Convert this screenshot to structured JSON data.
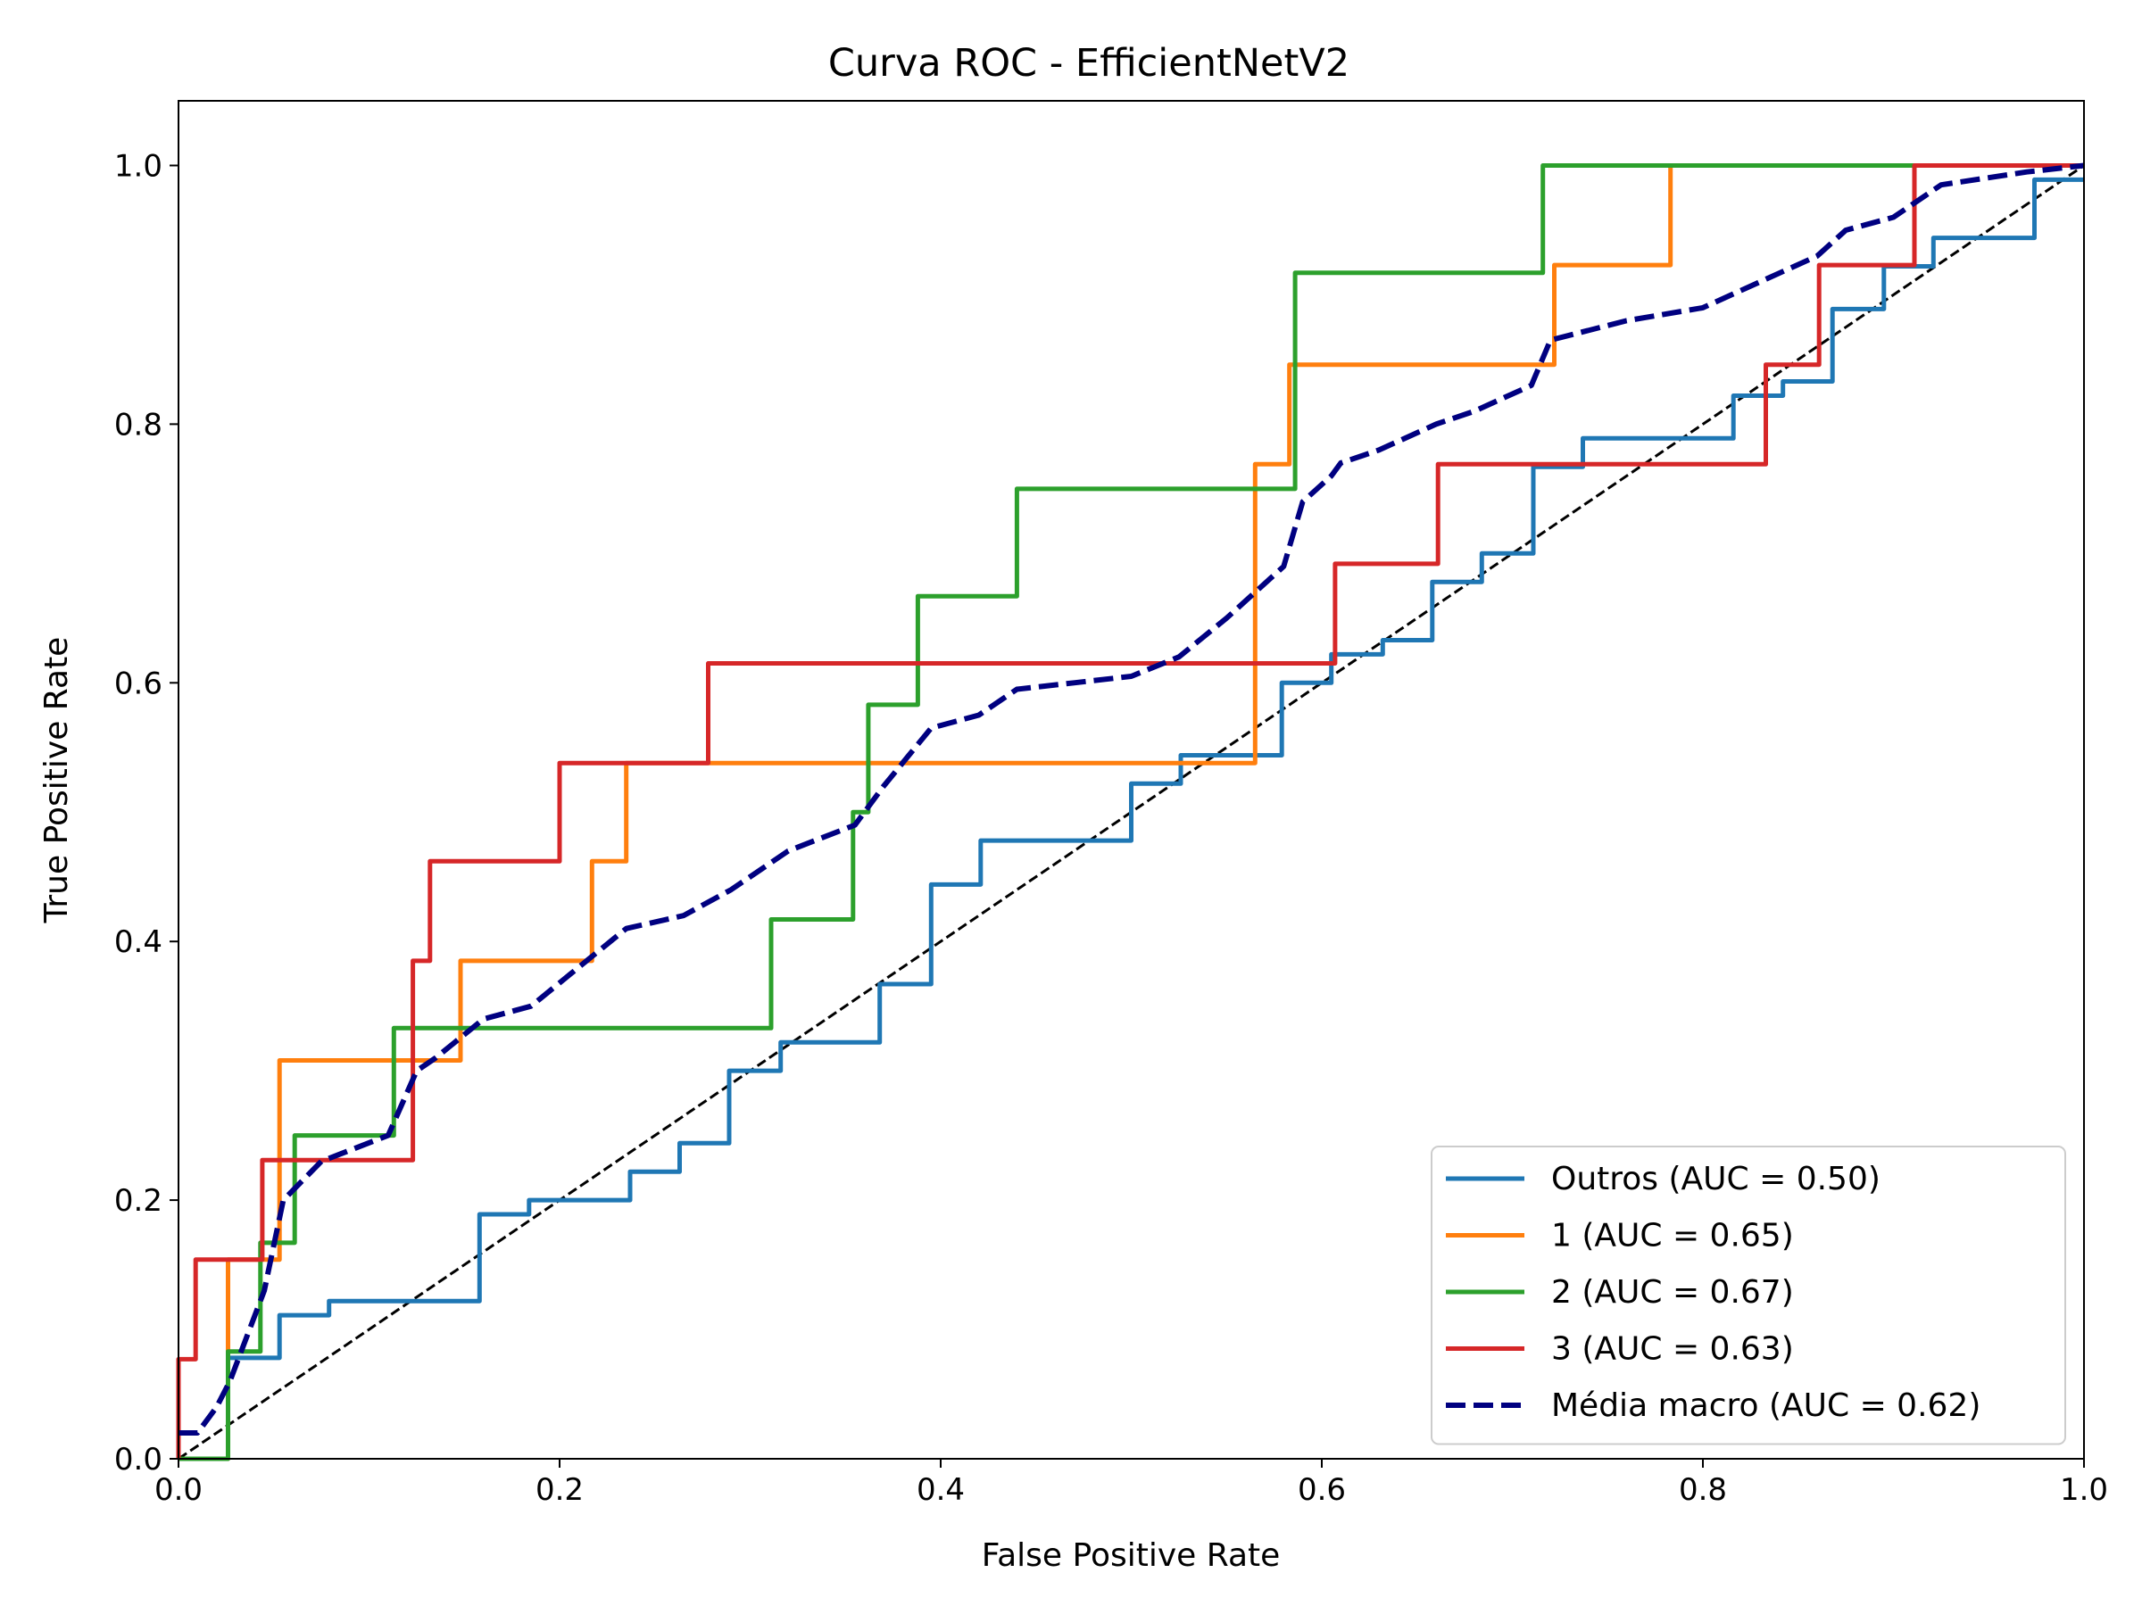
{
  "chart_data": {
    "type": "line",
    "title": "Curva ROC - EfficientNetV2",
    "xlabel": "False Positive Rate",
    "ylabel": "True Positive Rate",
    "xlim": [
      0.0,
      1.0
    ],
    "ylim": [
      0.0,
      1.05
    ],
    "xticks": [
      "0.0",
      "0.2",
      "0.4",
      "0.6",
      "0.8",
      "1.0"
    ],
    "yticks": [
      "0.0",
      "0.2",
      "0.4",
      "0.6",
      "0.8",
      "1.0"
    ],
    "grid": false,
    "legend_position": "lower right",
    "series": [
      {
        "name": "Outros (AUC = 0.50)",
        "color": "#1f77b4",
        "style": "solid",
        "x": [
          0.0,
          0.026,
          0.026,
          0.053,
          0.053,
          0.079,
          0.079,
          0.158,
          0.158,
          0.184,
          0.184,
          0.237,
          0.237,
          0.263,
          0.263,
          0.289,
          0.289,
          0.316,
          0.316,
          0.368,
          0.368,
          0.395,
          0.395,
          0.421,
          0.421,
          0.5,
          0.5,
          0.526,
          0.526,
          0.579,
          0.579,
          0.605,
          0.605,
          0.632,
          0.632,
          0.658,
          0.658,
          0.684,
          0.684,
          0.711,
          0.711,
          0.737,
          0.737,
          0.816,
          0.816,
          0.842,
          0.842,
          0.868,
          0.868,
          0.895,
          0.895,
          0.921,
          0.921,
          0.974,
          0.974,
          1.0
        ],
        "y": [
          0.0,
          0.0,
          0.078,
          0.078,
          0.111,
          0.111,
          0.122,
          0.122,
          0.189,
          0.189,
          0.2,
          0.2,
          0.222,
          0.222,
          0.244,
          0.244,
          0.3,
          0.3,
          0.322,
          0.322,
          0.367,
          0.367,
          0.444,
          0.444,
          0.478,
          0.478,
          0.522,
          0.522,
          0.544,
          0.544,
          0.6,
          0.6,
          0.622,
          0.622,
          0.633,
          0.633,
          0.678,
          0.678,
          0.7,
          0.7,
          0.767,
          0.767,
          0.789,
          0.789,
          0.822,
          0.822,
          0.833,
          0.833,
          0.889,
          0.889,
          0.922,
          0.922,
          0.944,
          0.944,
          0.989,
          0.989
        ]
      },
      {
        "name": "1 (AUC = 0.65)",
        "color": "#ff7f0e",
        "style": "solid",
        "x": [
          0.0,
          0.026,
          0.026,
          0.053,
          0.053,
          0.148,
          0.148,
          0.217,
          0.217,
          0.235,
          0.235,
          0.565,
          0.565,
          0.583,
          0.583,
          0.722,
          0.722,
          0.783,
          0.783,
          1.0
        ],
        "y": [
          0.0,
          0.0,
          0.154,
          0.154,
          0.308,
          0.308,
          0.385,
          0.385,
          0.462,
          0.462,
          0.538,
          0.538,
          0.769,
          0.769,
          0.846,
          0.846,
          0.923,
          0.923,
          1.0,
          1.0
        ]
      },
      {
        "name": "2 (AUC = 0.67)",
        "color": "#2ca02c",
        "style": "solid",
        "x": [
          0.0,
          0.026,
          0.026,
          0.043,
          0.043,
          0.061,
          0.061,
          0.113,
          0.113,
          0.311,
          0.311,
          0.354,
          0.354,
          0.362,
          0.362,
          0.388,
          0.388,
          0.44,
          0.44,
          0.586,
          0.586,
          0.716,
          0.716,
          1.0
        ],
        "y": [
          0.0,
          0.0,
          0.083,
          0.083,
          0.167,
          0.167,
          0.25,
          0.25,
          0.333,
          0.333,
          0.417,
          0.417,
          0.5,
          0.5,
          0.583,
          0.583,
          0.667,
          0.667,
          0.75,
          0.75,
          0.917,
          0.917,
          1.0,
          1.0
        ]
      },
      {
        "name": "3 (AUC = 0.63)",
        "color": "#d62728",
        "style": "solid",
        "x": [
          0.0,
          0.0,
          0.009,
          0.009,
          0.044,
          0.044,
          0.123,
          0.123,
          0.132,
          0.132,
          0.2,
          0.2,
          0.278,
          0.278,
          0.607,
          0.607,
          0.661,
          0.661,
          0.833,
          0.833,
          0.861,
          0.861,
          0.911,
          0.911,
          1.0
        ],
        "y": [
          0.0,
          0.077,
          0.077,
          0.154,
          0.154,
          0.231,
          0.231,
          0.385,
          0.385,
          0.462,
          0.462,
          0.538,
          0.538,
          0.615,
          0.615,
          0.692,
          0.692,
          0.769,
          0.769,
          0.846,
          0.846,
          0.923,
          0.923,
          1.0,
          1.0
        ]
      },
      {
        "name": "Média macro (AUC = 0.62)",
        "color": "#000080",
        "style": "dashed",
        "x": [
          0.0,
          0.01,
          0.02,
          0.027,
          0.045,
          0.055,
          0.075,
          0.11,
          0.125,
          0.135,
          0.16,
          0.185,
          0.21,
          0.235,
          0.265,
          0.29,
          0.32,
          0.355,
          0.37,
          0.395,
          0.42,
          0.44,
          0.47,
          0.5,
          0.525,
          0.55,
          0.58,
          0.59,
          0.605,
          0.61,
          0.63,
          0.66,
          0.68,
          0.71,
          0.72,
          0.76,
          0.8,
          0.83,
          0.86,
          0.875,
          0.9,
          0.925,
          0.97,
          1.0
        ],
        "y": [
          0.02,
          0.02,
          0.04,
          0.06,
          0.13,
          0.2,
          0.23,
          0.25,
          0.3,
          0.31,
          0.34,
          0.35,
          0.38,
          0.41,
          0.42,
          0.44,
          0.47,
          0.49,
          0.52,
          0.565,
          0.575,
          0.595,
          0.6,
          0.605,
          0.62,
          0.65,
          0.69,
          0.74,
          0.76,
          0.77,
          0.78,
          0.8,
          0.81,
          0.83,
          0.865,
          0.88,
          0.89,
          0.91,
          0.93,
          0.95,
          0.96,
          0.985,
          0.995,
          1.0
        ]
      },
      {
        "name": "",
        "color": "#000000",
        "style": "dashed-thin",
        "x": [
          0.0,
          1.0
        ],
        "y": [
          0.0,
          1.0
        ]
      }
    ]
  }
}
